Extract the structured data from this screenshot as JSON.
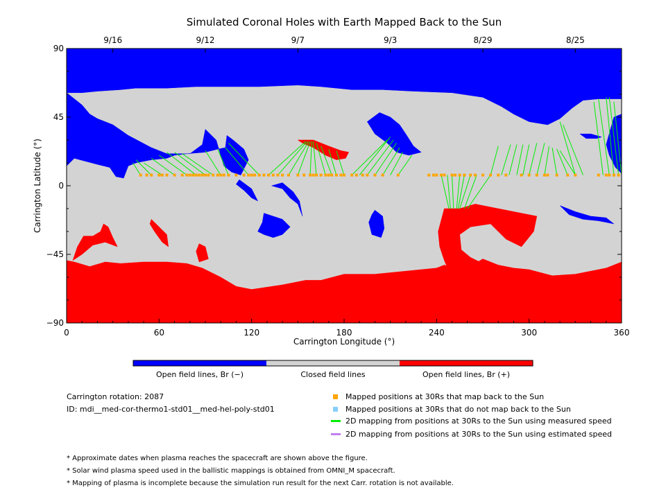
{
  "chart_data": {
    "type": "map",
    "title": "Simulated Coronal Holes with Earth Mapped Back to the Sun",
    "xlabel": "Carrington Longitude (°)",
    "ylabel": "Carrington Latitude (°)",
    "xlim": [
      0,
      360
    ],
    "ylim": [
      -90,
      90
    ],
    "xticks": [
      0,
      60,
      120,
      180,
      240,
      300,
      360
    ],
    "yticks": [
      -90,
      -45,
      0,
      45,
      90
    ],
    "xtick_labels": [
      "0",
      "60",
      "120",
      "180",
      "240",
      "300",
      "360"
    ],
    "ytick_labels": [
      "−90",
      "−45",
      "0",
      "45",
      "90"
    ],
    "top_dates": [
      {
        "label": "9/16",
        "lon": 30
      },
      {
        "label": "9/12",
        "lon": 90
      },
      {
        "label": "9/7",
        "lon": 150
      },
      {
        "label": "9/3",
        "lon": 210
      },
      {
        "label": "8/29",
        "lon": 270
      },
      {
        "label": "8/25",
        "lon": 330
      }
    ],
    "colors": {
      "open_negative": "#0000ff",
      "closed": "#d3d3d3",
      "open_positive": "#ff0000",
      "mapped": "#ffa500",
      "unmapped": "#87cefa",
      "measured_line": "#00ee00",
      "estimated_line": "#c080f0"
    },
    "colorbar": [
      {
        "label": "Open field lines, Br (−)",
        "color": "#0000ff"
      },
      {
        "label": "Closed field lines",
        "color": "#d3d3d3"
      },
      {
        "label": "Open field lines, Br (+)",
        "color": "#ff0000"
      }
    ],
    "regions": {
      "neg_polar": [
        [
          0,
          90
        ],
        [
          360,
          90
        ],
        [
          360,
          57
        ],
        [
          352,
          57
        ],
        [
          345,
          57
        ],
        [
          335,
          56
        ],
        [
          328,
          51
        ],
        [
          320,
          44
        ],
        [
          312,
          40
        ],
        [
          300,
          42
        ],
        [
          290,
          47
        ],
        [
          282,
          52
        ],
        [
          270,
          58
        ],
        [
          250,
          61
        ],
        [
          225,
          62
        ],
        [
          205,
          63
        ],
        [
          185,
          63
        ],
        [
          165,
          65
        ],
        [
          150,
          66
        ],
        [
          125,
          65
        ],
        [
          100,
          65
        ],
        [
          84,
          65
        ],
        [
          65,
          64
        ],
        [
          45,
          64
        ],
        [
          35,
          63
        ],
        [
          20,
          62
        ],
        [
          10,
          61
        ],
        [
          0,
          61
        ]
      ],
      "neg_left": [
        [
          0,
          61
        ],
        [
          0,
          13
        ],
        [
          5,
          18
        ],
        [
          20,
          14
        ],
        [
          28,
          12
        ],
        [
          32,
          6
        ],
        [
          37,
          5
        ],
        [
          40,
          13
        ],
        [
          45,
          15
        ],
        [
          55,
          17
        ],
        [
          65,
          18
        ],
        [
          70,
          20
        ],
        [
          78,
          21
        ],
        [
          90,
          22
        ],
        [
          98,
          24
        ],
        [
          103,
          25
        ],
        [
          104,
          33
        ],
        [
          108,
          30
        ],
        [
          115,
          24
        ],
        [
          118,
          17
        ],
        [
          113,
          7
        ],
        [
          107,
          9
        ],
        [
          102,
          13
        ],
        [
          97,
          30
        ],
        [
          90,
          37
        ],
        [
          88,
          27
        ],
        [
          80,
          21
        ],
        [
          65,
          21
        ],
        [
          55,
          25
        ],
        [
          40,
          33
        ],
        [
          30,
          40
        ],
        [
          25,
          42
        ],
        [
          20,
          44
        ],
        [
          15,
          47
        ],
        [
          10,
          53
        ]
      ],
      "neg_blob_1": [
        [
          133,
          0
        ],
        [
          140,
          -2
        ],
        [
          145,
          -8
        ],
        [
          150,
          -12
        ],
        [
          153,
          -20
        ],
        [
          151,
          -10
        ],
        [
          147,
          -4
        ],
        [
          140,
          2
        ]
      ],
      "neg_blob_2": [
        [
          112,
          4
        ],
        [
          120,
          -2
        ],
        [
          124,
          -10
        ],
        [
          120,
          -8
        ],
        [
          115,
          -3
        ],
        [
          110,
          1
        ]
      ],
      "neg_blob_3": [
        [
          203,
          48
        ],
        [
          210,
          45
        ],
        [
          216,
          40
        ],
        [
          220,
          34
        ],
        [
          225,
          26
        ],
        [
          230,
          22
        ],
        [
          222,
          20
        ],
        [
          214,
          22
        ],
        [
          208,
          28
        ],
        [
          200,
          34
        ],
        [
          195,
          42
        ]
      ],
      "neg_blob_4": [
        [
          128,
          -18
        ],
        [
          140,
          -22
        ],
        [
          145,
          -27
        ],
        [
          140,
          -32
        ],
        [
          134,
          -34
        ],
        [
          128,
          -32
        ],
        [
          124,
          -30
        ],
        [
          127,
          -24
        ]
      ],
      "neg_blob_5": [
        [
          200,
          -16
        ],
        [
          205,
          -20
        ],
        [
          206,
          -28
        ],
        [
          204,
          -34
        ],
        [
          198,
          -32
        ],
        [
          196,
          -24
        ],
        [
          198,
          -19
        ]
      ],
      "neg_right_1": [
        [
          320,
          -13
        ],
        [
          330,
          -17
        ],
        [
          340,
          -20
        ],
        [
          350,
          -21
        ],
        [
          355,
          -25
        ],
        [
          345,
          -23
        ],
        [
          335,
          -22
        ],
        [
          326,
          -19
        ]
      ],
      "neg_right_2": [
        [
          333,
          34
        ],
        [
          340,
          34
        ],
        [
          347,
          32
        ],
        [
          344,
          31
        ],
        [
          337,
          31
        ]
      ],
      "neg_right_3": [
        [
          355,
          45
        ],
        [
          360,
          47
        ],
        [
          360,
          8
        ],
        [
          356,
          12
        ],
        [
          352,
          20
        ],
        [
          350,
          27
        ]
      ],
      "pos_polar": [
        [
          0,
          -49
        ],
        [
          0,
          -90
        ],
        [
          360,
          -90
        ],
        [
          360,
          -50
        ],
        [
          350,
          -54
        ],
        [
          330,
          -58
        ],
        [
          315,
          -59
        ],
        [
          300,
          -55
        ],
        [
          290,
          -54
        ],
        [
          280,
          -52
        ],
        [
          275,
          -50
        ],
        [
          270,
          -48
        ],
        [
          265,
          -51
        ],
        [
          258,
          -55
        ],
        [
          250,
          -54
        ],
        [
          245,
          -52
        ],
        [
          240,
          -54
        ],
        [
          220,
          -56
        ],
        [
          200,
          -58
        ],
        [
          180,
          -58
        ],
        [
          165,
          -62
        ],
        [
          155,
          -62
        ],
        [
          140,
          -65
        ],
        [
          120,
          -68
        ],
        [
          110,
          -66
        ],
        [
          100,
          -60
        ],
        [
          88,
          -54
        ],
        [
          78,
          -51
        ],
        [
          65,
          -50
        ],
        [
          50,
          -50
        ],
        [
          35,
          -51
        ],
        [
          25,
          -50
        ],
        [
          15,
          -53
        ],
        [
          5,
          -50
        ]
      ],
      "pos_mid": [
        [
          245,
          -15
        ],
        [
          255,
          -15
        ],
        [
          265,
          -12
        ],
        [
          280,
          -15
        ],
        [
          290,
          -17
        ],
        [
          305,
          -20
        ],
        [
          303,
          -30
        ],
        [
          295,
          -40
        ],
        [
          285,
          -35
        ],
        [
          275,
          -25
        ],
        [
          262,
          -27
        ],
        [
          255,
          -32
        ],
        [
          256,
          -42
        ],
        [
          262,
          -47
        ],
        [
          272,
          -52
        ],
        [
          258,
          -55
        ],
        [
          248,
          -56
        ],
        [
          245,
          -49
        ],
        [
          242,
          -40
        ],
        [
          241,
          -30
        ]
      ],
      "pos_top": [
        [
          150,
          30
        ],
        [
          160,
          30
        ],
        [
          170,
          26
        ],
        [
          178,
          23
        ],
        [
          183,
          22
        ],
        [
          181,
          18
        ],
        [
          175,
          17
        ],
        [
          168,
          20
        ],
        [
          160,
          25
        ],
        [
          153,
          28
        ]
      ],
      "pos_left": [
        [
          4,
          -49
        ],
        [
          7,
          -40
        ],
        [
          11,
          -33
        ],
        [
          17,
          -33
        ],
        [
          22,
          -30
        ],
        [
          24,
          -25
        ],
        [
          27,
          -27
        ],
        [
          30,
          -34
        ],
        [
          33,
          -40
        ],
        [
          25,
          -37
        ],
        [
          17,
          -39
        ],
        [
          10,
          -45
        ]
      ],
      "pos_blob_1": [
        [
          55,
          -22
        ],
        [
          60,
          -27
        ],
        [
          65,
          -32
        ],
        [
          66,
          -40
        ],
        [
          62,
          -37
        ],
        [
          57,
          -30
        ],
        [
          54,
          -25
        ]
      ],
      "pos_blob_2": [
        [
          86,
          -38
        ],
        [
          90,
          -40
        ],
        [
          92,
          -48
        ],
        [
          86,
          -50
        ],
        [
          84,
          -43
        ]
      ]
    },
    "mapped_points_lat": 7,
    "mapped_points_lon": [
      48,
      52,
      55,
      60,
      62,
      65,
      70,
      75,
      78,
      80,
      82,
      84,
      86,
      88,
      90,
      92,
      95,
      98,
      100,
      102,
      105,
      110,
      115,
      118,
      120,
      122,
      125,
      128,
      131,
      134,
      137,
      140,
      144,
      150,
      154,
      158,
      160,
      162,
      165,
      168,
      170,
      172,
      175,
      178,
      180,
      185,
      188,
      192,
      195,
      200,
      205,
      215,
      235,
      238,
      240,
      243,
      245,
      250,
      252,
      255,
      258,
      262,
      265,
      270,
      275,
      280,
      285,
      295,
      300,
      305,
      310,
      312,
      318,
      325,
      330,
      345,
      350,
      352,
      355,
      358
    ],
    "measured_mappings": [
      [
        43,
        15,
        48,
        7
      ],
      [
        45,
        17,
        55,
        7
      ],
      [
        50,
        15,
        62,
        7
      ],
      [
        55,
        18,
        70,
        7
      ],
      [
        60,
        20,
        78,
        7
      ],
      [
        65,
        22,
        84,
        7
      ],
      [
        70,
        22,
        90,
        7
      ],
      [
        75,
        21,
        95,
        7
      ],
      [
        90,
        23,
        100,
        7
      ],
      [
        98,
        24,
        105,
        7
      ],
      [
        103,
        25,
        118,
        7
      ],
      [
        105,
        28,
        125,
        7
      ],
      [
        155,
        29,
        131,
        7
      ],
      [
        156,
        29,
        137,
        7
      ],
      [
        157,
        29,
        144,
        7
      ],
      [
        158,
        29,
        150,
        7
      ],
      [
        159,
        29,
        158,
        7
      ],
      [
        160,
        29,
        162,
        7
      ],
      [
        162,
        28,
        168,
        7
      ],
      [
        165,
        26,
        172,
        7
      ],
      [
        170,
        24,
        175,
        7
      ],
      [
        175,
        23,
        180,
        7
      ],
      [
        208,
        30,
        185,
        7
      ],
      [
        210,
        32,
        190,
        7
      ],
      [
        212,
        30,
        195,
        7
      ],
      [
        214,
        28,
        200,
        7
      ],
      [
        216,
        25,
        205,
        7
      ],
      [
        218,
        22,
        210,
        7
      ],
      [
        224,
        20,
        215,
        7
      ],
      [
        243,
        7,
        248,
        -15
      ],
      [
        247,
        7,
        249,
        -15
      ],
      [
        250,
        7,
        251,
        -15
      ],
      [
        255,
        7,
        253,
        -15
      ],
      [
        258,
        7,
        254,
        -15
      ],
      [
        262,
        7,
        255,
        -15
      ],
      [
        266,
        7,
        258,
        -15
      ],
      [
        275,
        7,
        260,
        -15
      ],
      [
        275,
        7,
        280,
        26
      ],
      [
        282,
        7,
        288,
        27
      ],
      [
        287,
        7,
        292,
        27
      ],
      [
        292,
        7,
        296,
        27
      ],
      [
        296,
        7,
        300,
        27
      ],
      [
        300,
        7,
        305,
        28
      ],
      [
        305,
        7,
        310,
        28
      ],
      [
        310,
        7,
        313,
        26
      ],
      [
        318,
        7,
        315,
        25
      ],
      [
        325,
        7,
        318,
        24
      ],
      [
        330,
        7,
        320,
        23
      ],
      [
        320,
        42,
        330,
        7
      ],
      [
        322,
        40,
        335,
        7
      ],
      [
        342,
        55,
        348,
        7
      ],
      [
        345,
        57,
        352,
        7
      ],
      [
        350,
        58,
        355,
        7
      ],
      [
        352,
        58,
        358,
        7
      ],
      [
        355,
        55,
        360,
        7
      ]
    ],
    "legend": [
      {
        "label": "Mapped positions at 30Rs that map back to the Sun",
        "kind": "square",
        "color": "#ffa500"
      },
      {
        "label": "Mapped positions at 30Rs that do not map back to the Sun",
        "kind": "square",
        "color": "#87cefa"
      },
      {
        "label": "2D mapping from positions at 30Rs to the Sun using measured speed",
        "kind": "line",
        "color": "#00ee00"
      },
      {
        "label": "2D mapping from positions at 30Rs to the Sun using estimated speed",
        "kind": "line",
        "color": "#c080f0"
      }
    ]
  },
  "info": {
    "carrington_rotation": "Carrington rotation: 2087",
    "model_id": "ID: mdi__med-cor-thermo1-std01__med-hel-poly-std01"
  },
  "notes": [
    "* Approximate dates when plasma reaches the spacecraft are shown above the figure.",
    "* Solar wind plasma speed used in the ballistic mappings is obtained from OMNI_M spacecraft.",
    "* Mapping of plasma is incomplete because the simulation run result for the next Carr. rotation is not available."
  ]
}
